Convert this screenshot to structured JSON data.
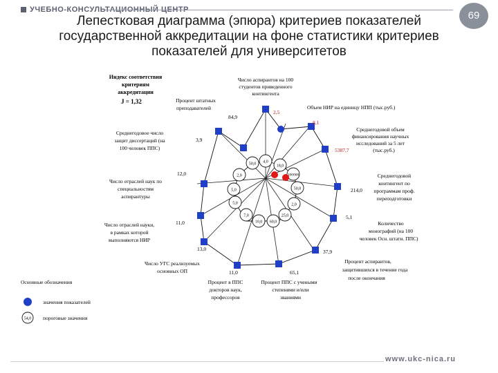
{
  "header": {
    "org_name": "УЧЕБНО-КОНСУЛЬТАЦИОННЫЙ ЦЕНТР",
    "page_number": "69"
  },
  "title": "Лепестковая диаграмма (эпюра) критериев показателей государственной аккредитации на фоне статистики критериев показателей для университетов",
  "index_box": {
    "line1": "Индекс соответствия",
    "line2": "критериям",
    "line3": "аккредитации",
    "line4": "J = 1,32"
  },
  "axis_labels": {
    "a1": [
      "Число аспирантов на 100",
      "студентов приведенного",
      "контингента"
    ],
    "a2": [
      "Объем НИР на единицу НПП (тыс.руб.)"
    ],
    "a3": [
      "Среднегодовой объем",
      "финансирования научных",
      "исследований за 5 лет",
      "(тыс.руб.)"
    ],
    "a4": [
      "Среднегодовой",
      "контингент по",
      "программам проф.",
      "переподготовки"
    ],
    "a5": [
      "Количество",
      "монографий (на 100",
      "человек Осн. штатн. ППС)"
    ],
    "a6": [
      "Процент аспирантов,",
      "защитившихся в течение года",
      "после окончания"
    ],
    "a7": [
      "Процент ППС с учеными",
      "степенями и/или",
      "званиями"
    ],
    "a8": [
      "Процент в ППС",
      "докторов наук,",
      "профессоров"
    ],
    "a9": [
      "Число УГС реализуемых",
      "основных ОП"
    ],
    "a10": [
      "Число отраслей науки,",
      "в рамках которой",
      "выполняются НИР"
    ],
    "a11": [
      "Число отраслей наук по",
      "специальностям",
      "аспирантуры"
    ],
    "a12": [
      "Среднегодовое число",
      "защит диссертаций (на",
      "100 человек ППС)"
    ],
    "a13": [
      "Процент штатных",
      "преподавателей"
    ]
  },
  "values": {
    "v_staff_pct": "84,9",
    "v_aspir": "2,5",
    "v_nir": "8,1",
    "v_fin": "5387,7",
    "v_retrain": "214,0",
    "v_mono": "5,1",
    "v_defended": "37,9",
    "v_degrees": "65,1",
    "v_doctors": "11,0",
    "v_ugs": "13,0",
    "v_branches_nir": "11,0",
    "v_branches_asp": "12,0",
    "v_dissert": "3,9"
  },
  "thresholds": {
    "t1": "4,0",
    "t2": "18,0",
    "t3": "50,0",
    "t4": "2,0",
    "t5": "100000",
    "t6": "5,0",
    "t7": "50,0",
    "t8": "5,0",
    "t9": "2,0",
    "t10": "7,0",
    "t11": "25,0",
    "t12": "10,0",
    "t13": "60,0"
  },
  "legend": {
    "title": "Основные обозначения",
    "item1": "значения показателей",
    "item2": "пороговые значения",
    "item2_sample": "54,0"
  },
  "colors": {
    "marker_blue": "#1f3fc7",
    "marker_red": "#e01818",
    "brand_gray": "#5a6170"
  },
  "footer": {
    "url": "www.ukc-nica.ru"
  }
}
